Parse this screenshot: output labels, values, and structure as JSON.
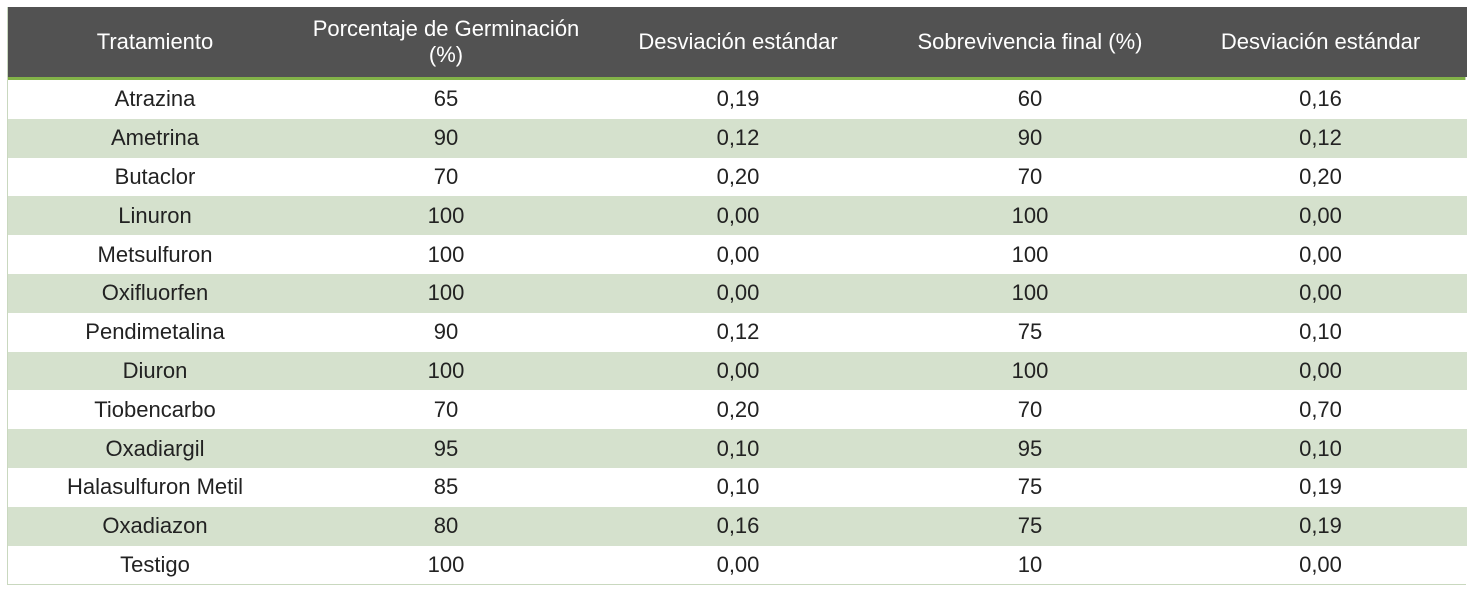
{
  "table": {
    "headers": [
      "Tratamiento",
      "Porcentaje de Germinación (%)",
      "Desviación estándar",
      "Sobrevivencia final (%)",
      "Desviación estándar"
    ],
    "rows": [
      [
        "Atrazina",
        "65",
        "0,19",
        "60",
        "0,16"
      ],
      [
        "Ametrina",
        "90",
        "0,12",
        "90",
        "0,12"
      ],
      [
        "Butaclor",
        "70",
        "0,20",
        "70",
        "0,20"
      ],
      [
        "Linuron",
        "100",
        "0,00",
        "100",
        "0,00"
      ],
      [
        "Metsulfuron",
        "100",
        "0,00",
        "100",
        "0,00"
      ],
      [
        "Oxifluorfen",
        "100",
        "0,00",
        "100",
        "0,00"
      ],
      [
        "Pendimetalina",
        "90",
        "0,12",
        "75",
        "0,10"
      ],
      [
        "Diuron",
        "100",
        "0,00",
        "100",
        "0,00"
      ],
      [
        "Tiobencarbo",
        "70",
        "0,20",
        "70",
        "0,70"
      ],
      [
        "Oxadiargil",
        "95",
        "0,10",
        "95",
        "0,10"
      ],
      [
        "Halasulfuron Metil",
        "85",
        "0,10",
        "75",
        "0,19"
      ],
      [
        "Oxadiazon",
        "80",
        "0,16",
        "75",
        "0,19"
      ],
      [
        "Testigo",
        "100",
        "0,00",
        "10",
        "0,00"
      ]
    ]
  },
  "colors": {
    "header_bg": "#525252",
    "header_accent": "#82b248",
    "stripe": "#d5e1cd",
    "border": "#c9d8bf"
  }
}
